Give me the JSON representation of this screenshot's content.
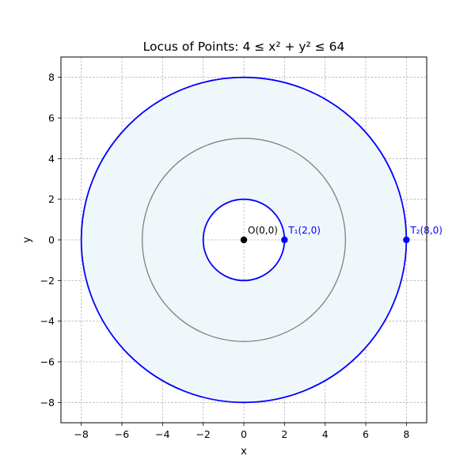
{
  "chart_data": {
    "type": "scatter",
    "title": "Locus of Points: 4 ≤ x² + y² ≤ 64",
    "xlabel": "x",
    "ylabel": "y",
    "xlim": [
      -9,
      9
    ],
    "ylim": [
      -9,
      9
    ],
    "xticks": [
      -8,
      -6,
      -4,
      -2,
      0,
      2,
      4,
      6,
      8
    ],
    "yticks": [
      -8,
      -6,
      -4,
      -2,
      0,
      2,
      4,
      6,
      8
    ],
    "grid": true,
    "region": {
      "description_shown": "shaded annulus",
      "inner_radius": 2,
      "outer_radius": 8,
      "fill_color": "#eef6f9"
    },
    "circles": [
      {
        "radius": 8,
        "color": "#0000ff"
      },
      {
        "radius": 5,
        "color": "#808080"
      },
      {
        "radius": 2,
        "color": "#0000ff"
      }
    ],
    "points": [
      {
        "label": "O(0,0)",
        "x": 0,
        "y": 0,
        "color": "#000000",
        "label_color": "#000000"
      },
      {
        "label": "T₁(2,0)",
        "x": 2,
        "y": 0,
        "color": "#0000ff",
        "label_color": "#0000ff"
      },
      {
        "label": "T₂(8,0)",
        "x": 8,
        "y": 0,
        "color": "#0000ff",
        "label_color": "#0000ff"
      }
    ]
  }
}
